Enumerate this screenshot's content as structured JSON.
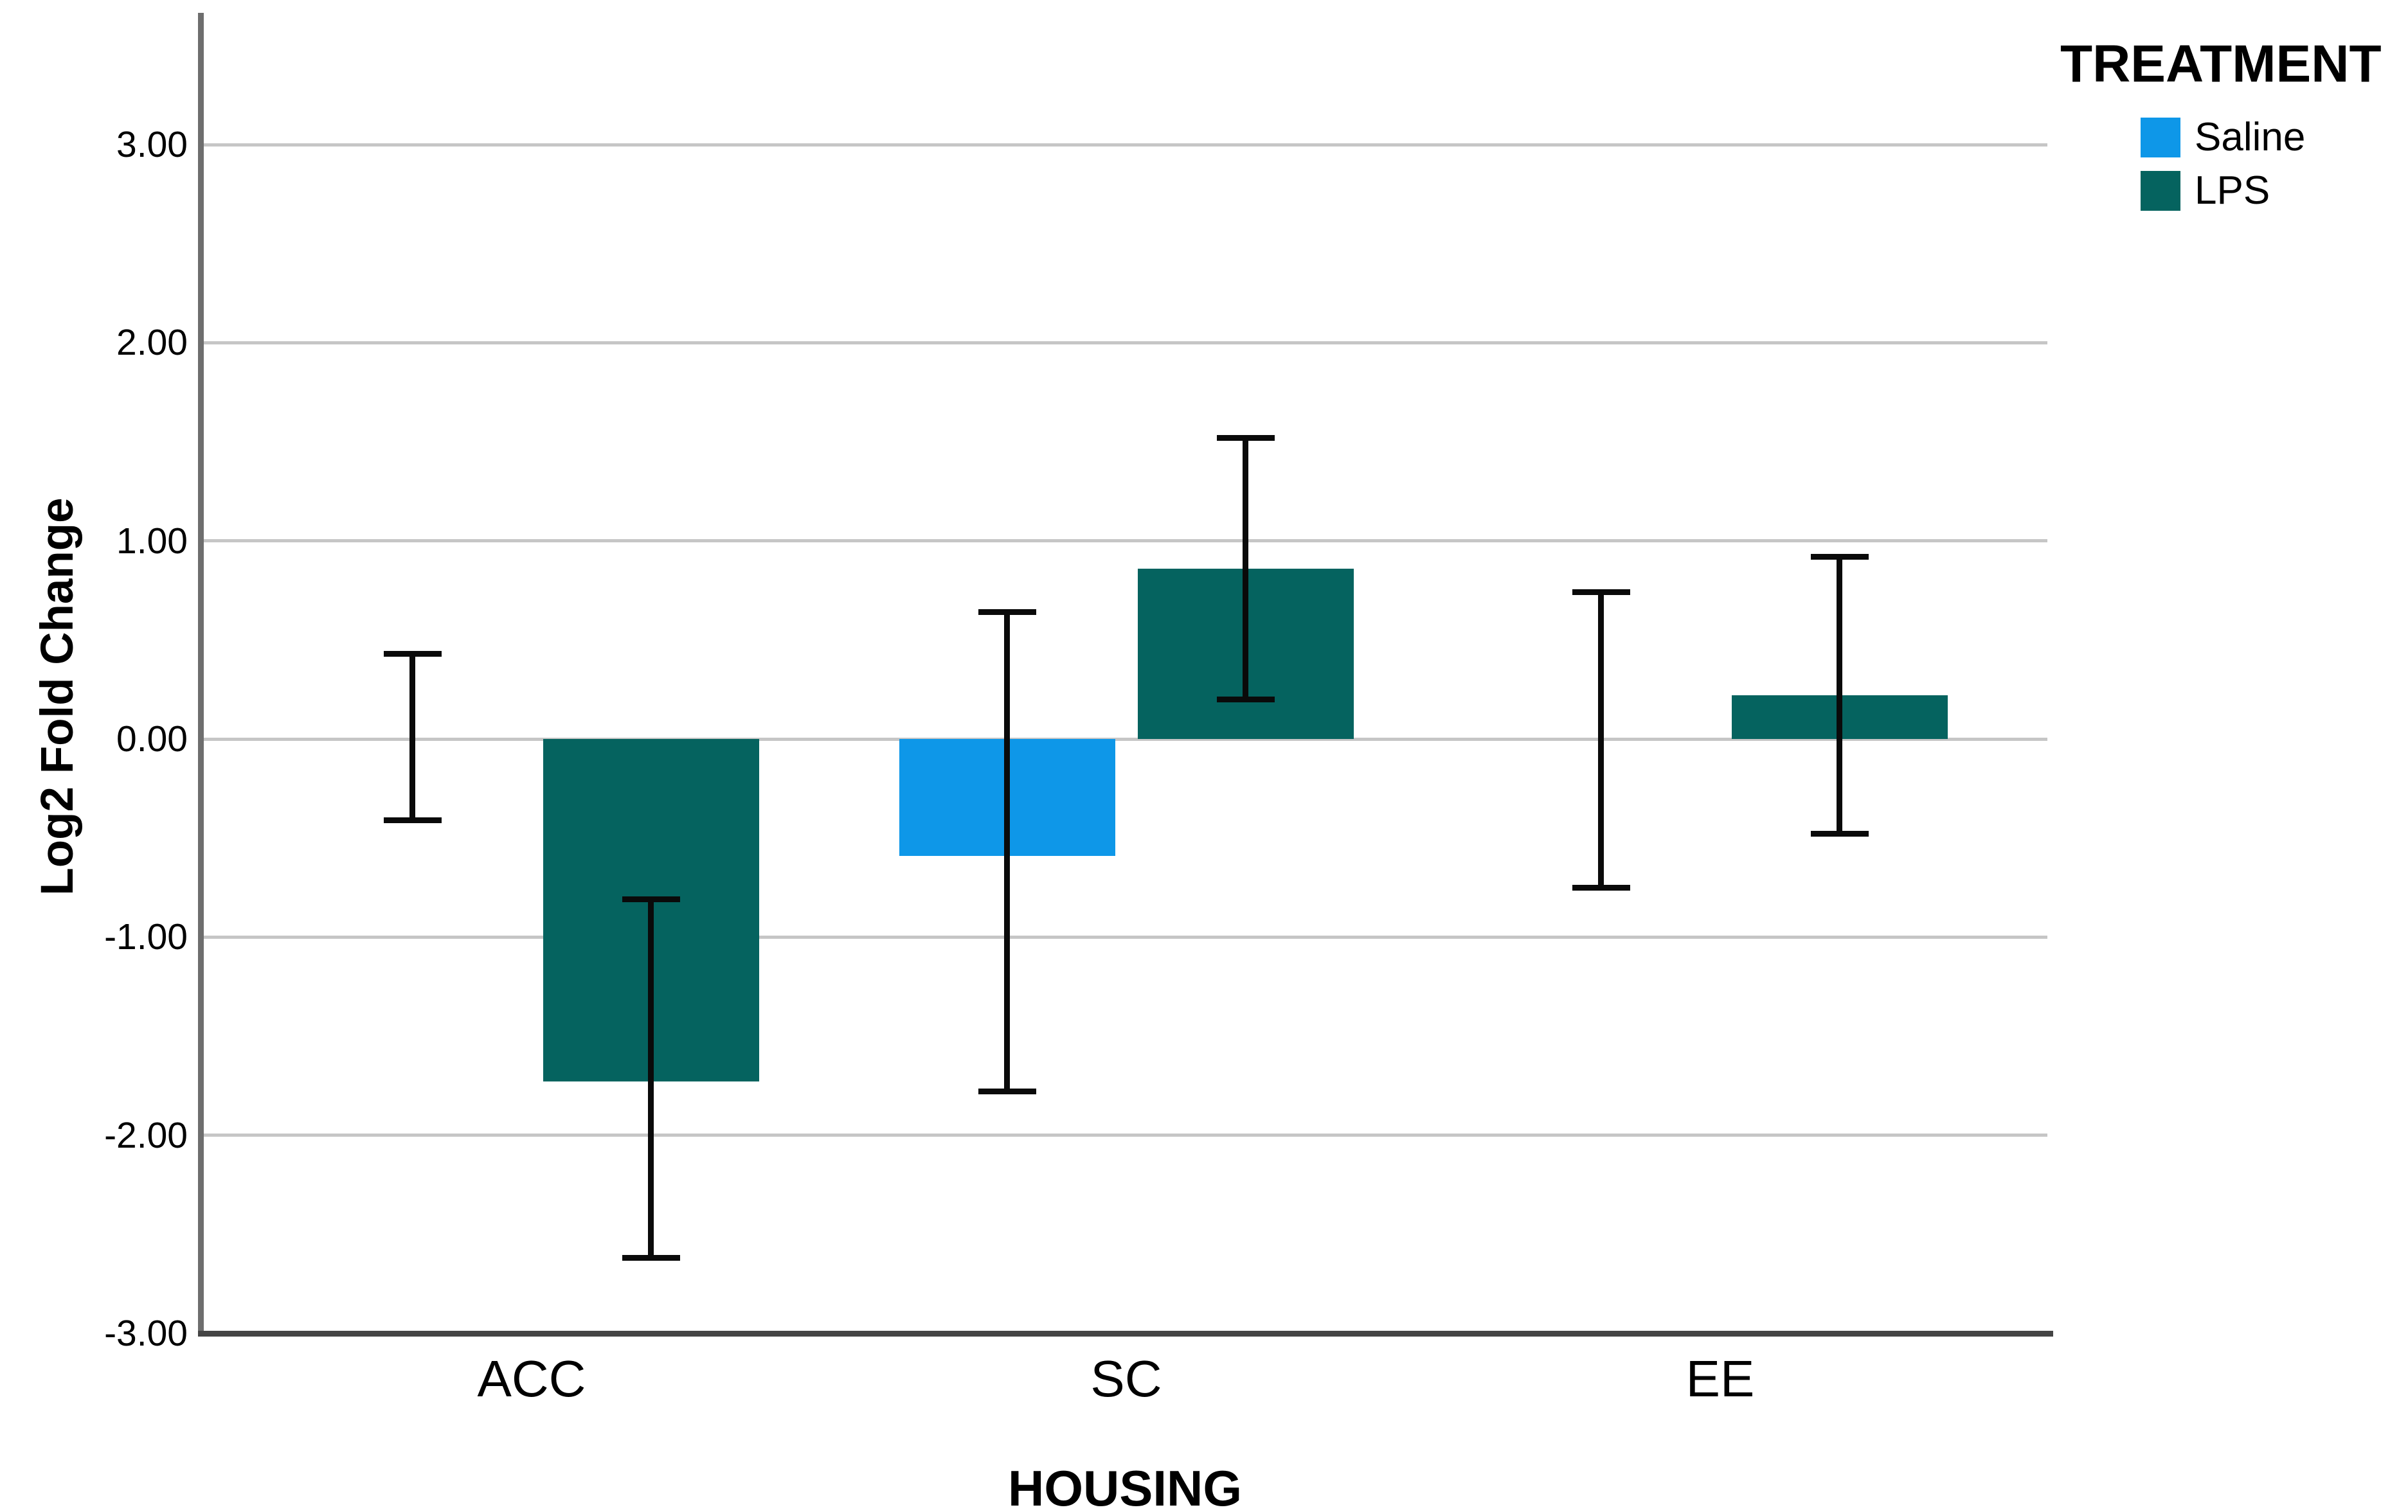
{
  "chart_data": {
    "type": "bar",
    "title": "",
    "xlabel": "HOUSING",
    "ylabel": "Log2 Fold Change",
    "categories": [
      "ACC",
      "SC",
      "EE"
    ],
    "series": [
      {
        "name": "Saline",
        "color": "#0e97e8",
        "values": [
          0.0,
          -0.59,
          0.0
        ],
        "error_low": [
          -0.41,
          -1.78,
          -0.75
        ],
        "error_high": [
          0.43,
          0.64,
          0.74
        ]
      },
      {
        "name": "LPS",
        "color": "#05635f",
        "values": [
          -1.73,
          0.86,
          0.22
        ],
        "error_low": [
          -2.62,
          0.2,
          -0.48
        ],
        "error_high": [
          -0.81,
          1.52,
          0.92
        ]
      }
    ],
    "legend": {
      "title": "TREATMENT",
      "position": "top-right"
    },
    "y_axis": {
      "min": -3,
      "max": 3,
      "ticks": [
        3,
        2,
        1,
        0,
        -1,
        -2,
        -3
      ],
      "tick_labels": [
        "3.00",
        "2.00",
        "1.00",
        "0.00",
        "-1.00",
        "-2.00",
        "-3.00"
      ],
      "grid": true
    },
    "x_axis": {
      "label": "HOUSING"
    },
    "error_bars": {
      "color": "#0a0a0a"
    },
    "colors": {
      "grid": "#c6c6c6",
      "y_axis_line": "#6e6e6e",
      "x_axis_line": "#454545",
      "text": "#000000",
      "background": "#ffffff"
    }
  }
}
